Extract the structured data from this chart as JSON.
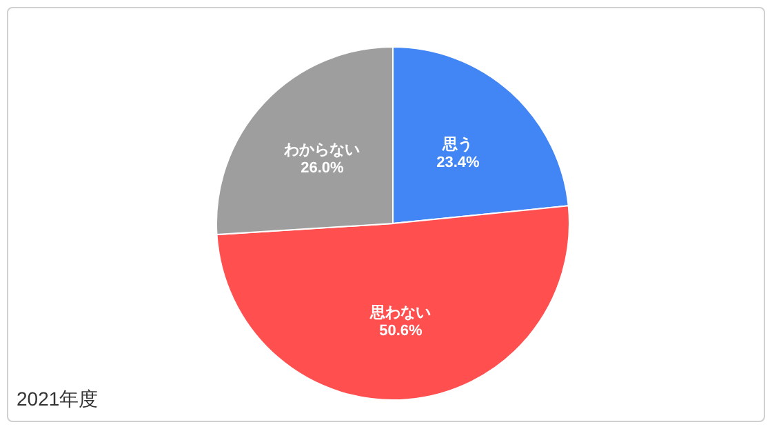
{
  "chart_data": {
    "type": "pie",
    "title": "2021年度",
    "categories": [
      "思う",
      "思わない",
      "わからない"
    ],
    "values": [
      23.4,
      50.6,
      26.0
    ],
    "colors": [
      "#4285f4",
      "#ff4f4f",
      "#9e9e9e"
    ],
    "value_labels": [
      "23.4%",
      "50.6%",
      "26.0%"
    ],
    "legend": false
  }
}
